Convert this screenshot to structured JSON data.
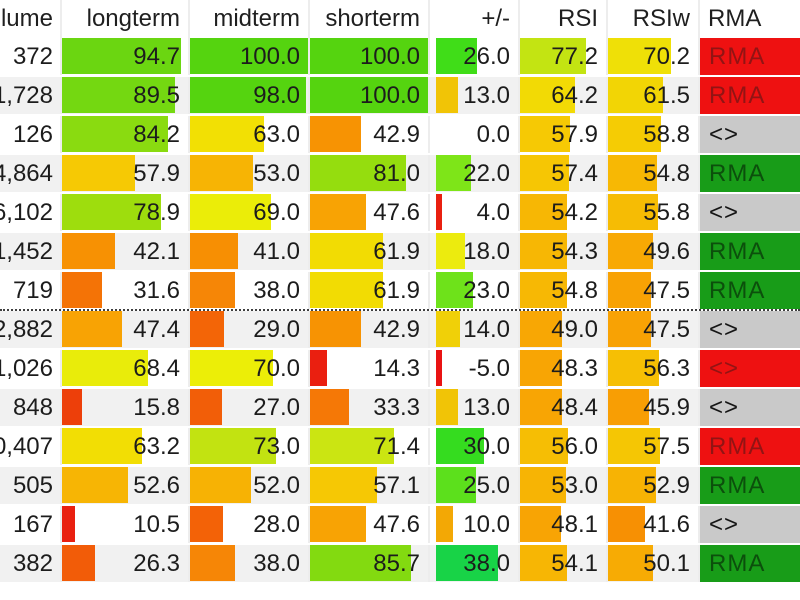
{
  "table": {
    "columns": [
      {
        "id": "volume",
        "label": "olume"
      },
      {
        "id": "longterm",
        "label": "longterm"
      },
      {
        "id": "midterm",
        "label": "midterm"
      },
      {
        "id": "shorterm",
        "label": "shorterm"
      },
      {
        "id": "plusminus",
        "label": "+/-"
      },
      {
        "id": "rsi",
        "label": "RSI"
      },
      {
        "id": "rsiw",
        "label": "RSIw"
      },
      {
        "id": "rma",
        "label": "RMA"
      }
    ],
    "rma_styles": {
      "red": {
        "bg": "#ee1111",
        "fg": "#921414"
      },
      "green": {
        "bg": "#189c18",
        "fg": "#0c4f0c"
      },
      "gray": {
        "bg": "#c9c9c9",
        "fg": "#151515"
      }
    },
    "dotted_after_row": 7,
    "rows": [
      {
        "volume": "372",
        "bars": [
          {
            "value": "94.7",
            "pct": 94.7,
            "color": "#6bd611"
          },
          {
            "value": "100.0",
            "pct": 100,
            "color": "#55d40f"
          },
          {
            "value": "100.0",
            "pct": 100,
            "color": "#55d40f"
          },
          {
            "value": "26.0",
            "pct": 47,
            "color": "#40dd18"
          },
          {
            "value": "77.2",
            "pct": 77.2,
            "color": "#c3e412"
          },
          {
            "value": "70.2",
            "pct": 70.2,
            "color": "#efe007"
          }
        ],
        "rma": {
          "label": "RMA",
          "style": "red"
        }
      },
      {
        "volume": "1,728",
        "bars": [
          {
            "value": "89.5",
            "pct": 89.5,
            "color": "#74d811"
          },
          {
            "value": "98.0",
            "pct": 98,
            "color": "#55d40f"
          },
          {
            "value": "100.0",
            "pct": 100,
            "color": "#55d40f"
          },
          {
            "value": "13.0",
            "pct": 25,
            "color": "#f1c406"
          },
          {
            "value": "64.2",
            "pct": 64.2,
            "color": "#f2da05"
          },
          {
            "value": "61.5",
            "pct": 61.5,
            "color": "#f2d505"
          }
        ],
        "rma": {
          "label": "RMA",
          "style": "red"
        }
      },
      {
        "volume": "126",
        "bars": [
          {
            "value": "84.2",
            "pct": 84.2,
            "color": "#8adb10"
          },
          {
            "value": "63.0",
            "pct": 63,
            "color": "#f2e004"
          },
          {
            "value": "42.9",
            "pct": 42.9,
            "color": "#f79303"
          },
          {
            "value": "0.0",
            "pct": 0,
            "color": "#ffffff"
          },
          {
            "value": "57.9",
            "pct": 57.9,
            "color": "#f6c904"
          },
          {
            "value": "58.8",
            "pct": 58.8,
            "color": "#f5cc04"
          }
        ],
        "rma": {
          "label": "<>",
          "style": "gray"
        }
      },
      {
        "volume": "4,864",
        "bars": [
          {
            "value": "57.9",
            "pct": 57.9,
            "color": "#f6c904"
          },
          {
            "value": "53.0",
            "pct": 53,
            "color": "#f7b404"
          },
          {
            "value": "81.0",
            "pct": 81,
            "color": "#95dd0e"
          },
          {
            "value": "22.0",
            "pct": 40,
            "color": "#7ee518"
          },
          {
            "value": "57.4",
            "pct": 57.4,
            "color": "#f6c604"
          },
          {
            "value": "54.8",
            "pct": 54.8,
            "color": "#f7b804"
          }
        ],
        "rma": {
          "label": "RMA",
          "style": "green"
        }
      },
      {
        "volume": "6,102",
        "bars": [
          {
            "value": "78.9",
            "pct": 78.9,
            "color": "#9edd0d"
          },
          {
            "value": "69.0",
            "pct": 69,
            "color": "#ebed08"
          },
          {
            "value": "47.6",
            "pct": 47.6,
            "color": "#f8a304"
          },
          {
            "value": "4.0",
            "pct": 7,
            "color": "#e92010"
          },
          {
            "value": "54.2",
            "pct": 54.2,
            "color": "#f7b704"
          },
          {
            "value": "55.8",
            "pct": 55.8,
            "color": "#f6bc04"
          }
        ],
        "rma": {
          "label": "<>",
          "style": "gray"
        }
      },
      {
        "volume": "1,452",
        "bars": [
          {
            "value": "42.1",
            "pct": 42.1,
            "color": "#f79103"
          },
          {
            "value": "41.0",
            "pct": 41,
            "color": "#f78f03"
          },
          {
            "value": "61.9",
            "pct": 61.9,
            "color": "#f2dc03"
          },
          {
            "value": "18.0",
            "pct": 33,
            "color": "#eceb0e"
          },
          {
            "value": "54.3",
            "pct": 54.3,
            "color": "#f7b704"
          },
          {
            "value": "49.6",
            "pct": 49.6,
            "color": "#f8a904"
          }
        ],
        "rma": {
          "label": "RMA",
          "style": "green"
        }
      },
      {
        "volume": "719",
        "bars": [
          {
            "value": "31.6",
            "pct": 31.6,
            "color": "#f47306"
          },
          {
            "value": "38.0",
            "pct": 38,
            "color": "#f68606"
          },
          {
            "value": "61.9",
            "pct": 61.9,
            "color": "#f2dc03"
          },
          {
            "value": "23.0",
            "pct": 42,
            "color": "#6ee21a"
          },
          {
            "value": "54.8",
            "pct": 54.8,
            "color": "#f7b804"
          },
          {
            "value": "47.5",
            "pct": 47.5,
            "color": "#f8a204"
          }
        ],
        "rma": {
          "label": "RMA",
          "style": "green"
        }
      },
      {
        "volume": "2,882",
        "bars": [
          {
            "value": "47.4",
            "pct": 47.4,
            "color": "#f8a304"
          },
          {
            "value": "29.0",
            "pct": 29,
            "color": "#f36507"
          },
          {
            "value": "42.9",
            "pct": 42.9,
            "color": "#f79303"
          },
          {
            "value": "14.0",
            "pct": 27,
            "color": "#f0d008"
          },
          {
            "value": "49.0",
            "pct": 49,
            "color": "#f8a704"
          },
          {
            "value": "47.5",
            "pct": 47.5,
            "color": "#f8a204"
          }
        ],
        "rma": {
          "label": "<>",
          "style": "gray"
        }
      },
      {
        "volume": "1,026",
        "bars": [
          {
            "value": "68.4",
            "pct": 68.4,
            "color": "#e9ec0a"
          },
          {
            "value": "70.0",
            "pct": 70,
            "color": "#ecee07"
          },
          {
            "value": "14.3",
            "pct": 14.3,
            "color": "#ea1f10"
          },
          {
            "value": "-5.0",
            "pct": 7,
            "color": "#e91313"
          },
          {
            "value": "48.3",
            "pct": 48.3,
            "color": "#f8a504"
          },
          {
            "value": "56.3",
            "pct": 56.3,
            "color": "#f6bf04"
          }
        ],
        "rma": {
          "label": "<>",
          "style": "red"
        }
      },
      {
        "volume": "848",
        "bars": [
          {
            "value": "15.8",
            "pct": 15.8,
            "color": "#ed3f0a"
          },
          {
            "value": "27.0",
            "pct": 27,
            "color": "#f25e08"
          },
          {
            "value": "33.3",
            "pct": 33.3,
            "color": "#f57806"
          },
          {
            "value": "13.0",
            "pct": 25,
            "color": "#f1c406"
          },
          {
            "value": "48.4",
            "pct": 48.4,
            "color": "#f8a504"
          },
          {
            "value": "45.9",
            "pct": 45.9,
            "color": "#f89e04"
          }
        ],
        "rma": {
          "label": "<>",
          "style": "gray"
        }
      },
      {
        "volume": "0,407",
        "bars": [
          {
            "value": "63.2",
            "pct": 63.2,
            "color": "#f2de04"
          },
          {
            "value": "73.0",
            "pct": 73,
            "color": "#c2e311"
          },
          {
            "value": "71.4",
            "pct": 71.4,
            "color": "#cbe512"
          },
          {
            "value": "30.0",
            "pct": 55,
            "color": "#35dc1f"
          },
          {
            "value": "56.0",
            "pct": 56,
            "color": "#f6be04"
          },
          {
            "value": "57.5",
            "pct": 57.5,
            "color": "#f5c604"
          }
        ],
        "rma": {
          "label": "RMA",
          "style": "red"
        }
      },
      {
        "volume": "505",
        "bars": [
          {
            "value": "52.6",
            "pct": 52.6,
            "color": "#f7b504"
          },
          {
            "value": "52.0",
            "pct": 52,
            "color": "#f7b204"
          },
          {
            "value": "57.1",
            "pct": 57.1,
            "color": "#f6c804"
          },
          {
            "value": "25.0",
            "pct": 45,
            "color": "#5ce01c"
          },
          {
            "value": "53.0",
            "pct": 53,
            "color": "#f7b404"
          },
          {
            "value": "52.9",
            "pct": 52.9,
            "color": "#f7b304"
          }
        ],
        "rma": {
          "label": "RMA",
          "style": "green"
        }
      },
      {
        "volume": "167",
        "bars": [
          {
            "value": "10.5",
            "pct": 10.5,
            "color": "#e92010"
          },
          {
            "value": "28.0",
            "pct": 28,
            "color": "#f36207"
          },
          {
            "value": "47.6",
            "pct": 47.6,
            "color": "#f8a304"
          },
          {
            "value": "10.0",
            "pct": 19,
            "color": "#f3a805"
          },
          {
            "value": "48.1",
            "pct": 48.1,
            "color": "#f8a404"
          },
          {
            "value": "41.6",
            "pct": 41.6,
            "color": "#f79003"
          }
        ],
        "rma": {
          "label": "<>",
          "style": "gray"
        }
      },
      {
        "volume": "382",
        "bars": [
          {
            "value": "26.3",
            "pct": 26.3,
            "color": "#f25c08"
          },
          {
            "value": "38.0",
            "pct": 38,
            "color": "#f68606"
          },
          {
            "value": "85.7",
            "pct": 85.7,
            "color": "#83da10"
          },
          {
            "value": "38.0",
            "pct": 70,
            "color": "#18d347"
          },
          {
            "value": "54.1",
            "pct": 54.1,
            "color": "#f7b604"
          },
          {
            "value": "50.1",
            "pct": 50.1,
            "color": "#f7ab04"
          }
        ],
        "rma": {
          "label": "RMA",
          "style": "green"
        }
      }
    ]
  }
}
